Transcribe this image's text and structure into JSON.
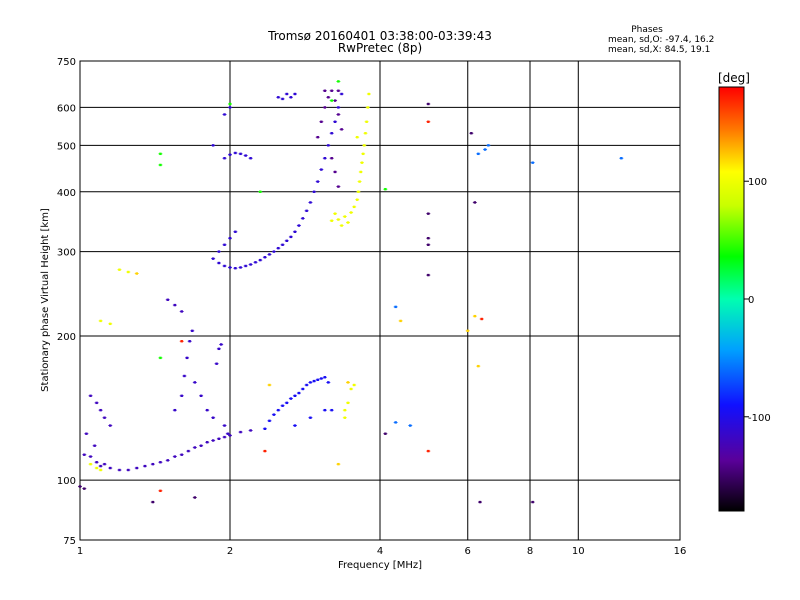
{
  "chart_data": {
    "type": "scatter",
    "title": "Tromsø 20160401 03:38:00-03:39:43",
    "subtitle": "RwPretec (8p)",
    "xlabel": "Frequency [MHz]",
    "ylabel": "Stationary phase Virtual Height [km]",
    "x_scale": "log",
    "y_scale": "log",
    "xlim": [
      1,
      16
    ],
    "ylim": [
      75,
      750
    ],
    "x_ticks": [
      1,
      2,
      4,
      6,
      8,
      10,
      16
    ],
    "x_tick_labels": [
      "1",
      "2",
      "4",
      "6",
      "8",
      "10",
      "16"
    ],
    "y_ticks": [
      75,
      100,
      200,
      300,
      400,
      500,
      600,
      750
    ],
    "y_tick_labels": [
      "75",
      "100",
      "200",
      "300",
      "400",
      "500",
      "600",
      "750"
    ],
    "grid": true,
    "colorbar": {
      "label": "[deg]",
      "range": [
        -180,
        180
      ],
      "ticks": [
        100,
        0,
        -100
      ],
      "tick_labels": [
        "100",
        "0",
        "-100"
      ]
    },
    "legend_position": "top-right",
    "stats": {
      "heading": "Phases",
      "line_o": "mean, sd,O: -97.4, 16.2",
      "line_x": "mean, sd,X:  84.5, 19.1"
    },
    "traces": [
      {
        "name": "",
        "phase": -120,
        "points": [
          [
            1.02,
            113
          ],
          [
            1.05,
            112
          ],
          [
            1.08,
            109
          ],
          [
            1.1,
            107
          ],
          [
            1.12,
            108
          ],
          [
            1.15,
            106
          ],
          [
            1.2,
            105
          ],
          [
            1.25,
            105
          ],
          [
            1.3,
            106
          ],
          [
            1.35,
            107
          ],
          [
            1.4,
            108
          ],
          [
            1.45,
            109
          ],
          [
            1.5,
            110
          ],
          [
            1.55,
            112
          ],
          [
            1.6,
            113
          ],
          [
            1.65,
            115
          ],
          [
            1.7,
            117
          ],
          [
            1.75,
            118
          ],
          [
            1.8,
            120
          ],
          [
            1.85,
            121
          ],
          [
            1.9,
            122
          ],
          [
            1.95,
            123
          ],
          [
            2.0,
            124
          ],
          [
            2.1,
            126
          ],
          [
            2.2,
            127
          ]
        ]
      },
      {
        "name": "",
        "phase": -115,
        "points": [
          [
            1.55,
            140
          ],
          [
            1.6,
            150
          ],
          [
            1.62,
            165
          ],
          [
            1.64,
            180
          ],
          [
            1.66,
            195
          ],
          [
            1.68,
            205
          ],
          [
            1.7,
            160
          ],
          [
            1.75,
            150
          ],
          [
            1.8,
            140
          ],
          [
            1.85,
            135
          ],
          [
            1.88,
            175
          ],
          [
            1.9,
            188
          ],
          [
            1.92,
            192
          ],
          [
            1.95,
            130
          ],
          [
            1.98,
            125
          ]
        ]
      },
      {
        "name": "",
        "phase": -95,
        "points": [
          [
            2.35,
            128
          ],
          [
            2.4,
            133
          ],
          [
            2.45,
            137
          ],
          [
            2.5,
            140
          ],
          [
            2.55,
            143
          ],
          [
            2.6,
            145
          ],
          [
            2.65,
            148
          ],
          [
            2.7,
            150
          ],
          [
            2.75,
            152
          ],
          [
            2.8,
            155
          ],
          [
            2.85,
            158
          ],
          [
            2.9,
            160
          ],
          [
            2.95,
            161
          ],
          [
            3.0,
            162
          ],
          [
            3.05,
            163
          ],
          [
            3.1,
            164
          ],
          [
            3.15,
            160
          ],
          [
            2.7,
            130
          ],
          [
            2.9,
            135
          ],
          [
            3.1,
            140
          ],
          [
            3.2,
            140
          ]
        ]
      },
      {
        "name": "",
        "phase": -120,
        "points": [
          [
            1.05,
            150
          ],
          [
            1.08,
            145
          ],
          [
            1.1,
            140
          ],
          [
            1.12,
            135
          ],
          [
            1.15,
            130
          ],
          [
            1.03,
            125
          ],
          [
            1.07,
            118
          ],
          [
            1.5,
            238
          ],
          [
            1.55,
            232
          ],
          [
            1.6,
            225
          ]
        ]
      },
      {
        "name": "",
        "phase": -110,
        "points": [
          [
            1.85,
            290
          ],
          [
            1.9,
            284
          ],
          [
            1.95,
            280
          ],
          [
            2.0,
            278
          ],
          [
            2.05,
            277
          ],
          [
            2.1,
            278
          ],
          [
            2.15,
            280
          ],
          [
            2.2,
            282
          ],
          [
            2.25,
            285
          ],
          [
            2.3,
            288
          ],
          [
            2.35,
            292
          ],
          [
            2.4,
            296
          ],
          [
            2.45,
            300
          ],
          [
            2.5,
            305
          ],
          [
            2.55,
            310
          ],
          [
            2.6,
            316
          ],
          [
            2.65,
            322
          ],
          [
            2.7,
            330
          ],
          [
            2.75,
            340
          ],
          [
            2.8,
            352
          ],
          [
            2.85,
            365
          ],
          [
            2.9,
            380
          ],
          [
            2.95,
            400
          ],
          [
            3.0,
            420
          ],
          [
            3.05,
            445
          ],
          [
            3.1,
            470
          ],
          [
            3.15,
            500
          ],
          [
            3.2,
            530
          ],
          [
            3.25,
            560
          ],
          [
            3.3,
            600
          ],
          [
            3.35,
            640
          ]
        ]
      },
      {
        "name": "",
        "phase": -140,
        "points": [
          [
            3.0,
            520
          ],
          [
            3.05,
            560
          ],
          [
            3.1,
            600
          ],
          [
            3.15,
            630
          ],
          [
            3.2,
            650
          ],
          [
            3.25,
            620
          ],
          [
            3.3,
            580
          ],
          [
            3.35,
            540
          ],
          [
            3.2,
            470
          ],
          [
            3.25,
            440
          ],
          [
            3.3,
            410
          ],
          [
            3.1,
            650
          ],
          [
            3.3,
            650
          ]
        ]
      },
      {
        "name": "",
        "phase": -110,
        "points": [
          [
            1.9,
            300
          ],
          [
            1.95,
            310
          ],
          [
            2.0,
            320
          ],
          [
            2.05,
            330
          ],
          [
            1.95,
            470
          ],
          [
            2.0,
            478
          ],
          [
            2.05,
            482
          ],
          [
            2.1,
            480
          ],
          [
            2.15,
            476
          ],
          [
            2.2,
            470
          ],
          [
            1.95,
            580
          ],
          [
            2.0,
            600
          ],
          [
            1.85,
            500
          ],
          [
            2.5,
            630
          ],
          [
            2.55,
            625
          ],
          [
            2.6,
            640
          ],
          [
            2.65,
            630
          ],
          [
            2.7,
            640
          ]
        ]
      },
      {
        "name": "",
        "phase": 100,
        "points": [
          [
            3.2,
            348
          ],
          [
            3.3,
            350
          ],
          [
            3.4,
            355
          ],
          [
            3.5,
            362
          ],
          [
            3.55,
            372
          ],
          [
            3.6,
            385
          ],
          [
            3.62,
            400
          ],
          [
            3.64,
            420
          ],
          [
            3.66,
            440
          ],
          [
            3.68,
            460
          ],
          [
            3.7,
            480
          ],
          [
            3.72,
            500
          ],
          [
            3.74,
            530
          ],
          [
            3.76,
            560
          ],
          [
            3.78,
            600
          ],
          [
            3.8,
            640
          ],
          [
            3.25,
            360
          ],
          [
            3.35,
            340
          ],
          [
            3.45,
            345
          ],
          [
            3.6,
            520
          ]
        ]
      },
      {
        "name": "",
        "phase": 100,
        "points": [
          [
            3.4,
            140
          ],
          [
            3.45,
            145
          ],
          [
            3.5,
            155
          ],
          [
            3.55,
            158
          ],
          [
            3.4,
            135
          ],
          [
            1.05,
            108
          ],
          [
            1.08,
            106
          ],
          [
            1.1,
            105
          ],
          [
            1.2,
            275
          ],
          [
            1.25,
            272
          ],
          [
            1.1,
            215
          ],
          [
            1.15,
            212
          ]
        ]
      },
      {
        "name": "",
        "phase": 40,
        "points": [
          [
            1.45,
            480
          ],
          [
            1.45,
            455
          ],
          [
            1.45,
            180
          ],
          [
            2.0,
            610
          ],
          [
            2.3,
            400
          ],
          [
            3.3,
            680
          ],
          [
            4.1,
            405
          ],
          [
            3.2,
            620
          ]
        ]
      },
      {
        "name": "",
        "phase": -60,
        "points": [
          [
            4.3,
            230
          ],
          [
            4.6,
            130
          ],
          [
            4.3,
            132
          ],
          [
            6.5,
            490
          ],
          [
            6.3,
            480
          ],
          [
            8.1,
            460
          ],
          [
            12.2,
            470
          ],
          [
            6.6,
            500
          ]
        ]
      },
      {
        "name": "",
        "phase": -150,
        "points": [
          [
            5.0,
            610
          ],
          [
            4.1,
            125
          ],
          [
            5.0,
            360
          ],
          [
            5.0,
            320
          ],
          [
            5.0,
            310
          ],
          [
            5.0,
            268
          ],
          [
            6.2,
            380
          ],
          [
            6.1,
            530
          ],
          [
            6.35,
            90
          ],
          [
            8.1,
            90
          ],
          [
            1.7,
            92
          ],
          [
            1.4,
            90
          ],
          [
            1.0,
            97
          ],
          [
            1.02,
            96
          ]
        ]
      },
      {
        "name": "",
        "phase": 170,
        "points": [
          [
            5.0,
            560
          ],
          [
            1.45,
            95
          ],
          [
            5.0,
            115
          ],
          [
            6.4,
            217
          ],
          [
            2.35,
            115
          ],
          [
            1.6,
            195
          ]
        ]
      },
      {
        "name": "",
        "phase": 120,
        "points": [
          [
            6.0,
            205
          ],
          [
            6.2,
            220
          ],
          [
            4.4,
            215
          ],
          [
            3.3,
            108
          ],
          [
            2.4,
            158
          ],
          [
            3.45,
            160
          ],
          [
            1.3,
            270
          ],
          [
            6.3,
            173
          ]
        ]
      }
    ]
  }
}
